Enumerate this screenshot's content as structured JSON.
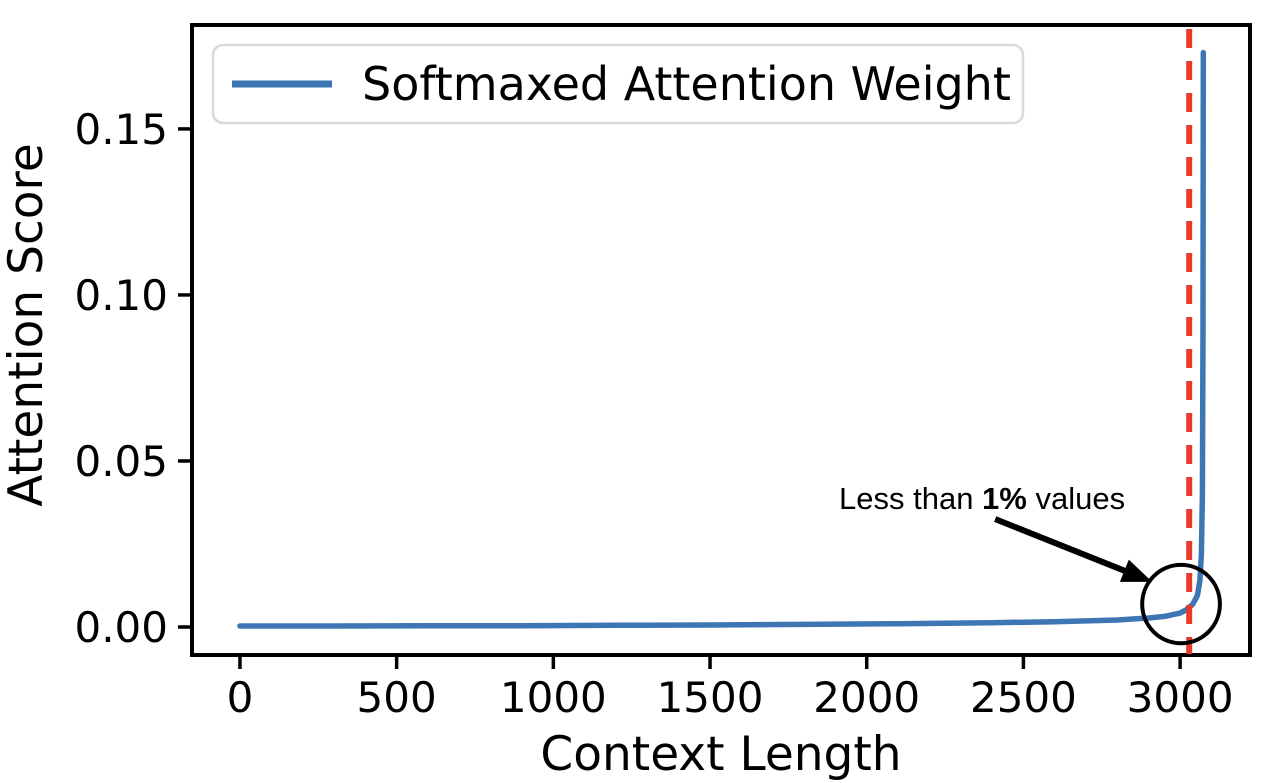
{
  "chart_data": {
    "type": "line",
    "title": "",
    "xlabel": "Context Length",
    "ylabel": "Attention Score",
    "xlim": [
      -153,
      3223
    ],
    "ylim": [
      -0.00843,
      0.1813
    ],
    "grid": false,
    "x_ticks": {
      "values": [
        0,
        500,
        1000,
        1500,
        2000,
        2500,
        3000
      ],
      "labels": [
        "0",
        "500",
        "1000",
        "1500",
        "2000",
        "2500",
        "3000"
      ]
    },
    "y_ticks": {
      "values": [
        0.0,
        0.05,
        0.1,
        0.15
      ],
      "labels": [
        "0.00",
        "0.05",
        "0.10",
        "0.15"
      ]
    },
    "legend": {
      "position": "upper left",
      "label": "Softmaxed Attention Weight",
      "line_color": "#3e76b4",
      "border_color": "#d9d9d9",
      "background": "#ffffff"
    },
    "series": [
      {
        "name": "Softmaxed Attention Weight",
        "color": "#3e76b4",
        "line_width": 5.5,
        "points": [
          [
            0,
            0.0003
          ],
          [
            300,
            0.0003
          ],
          [
            600,
            0.00035
          ],
          [
            900,
            0.0004
          ],
          [
            1200,
            0.0005
          ],
          [
            1500,
            0.0006
          ],
          [
            1800,
            0.0008
          ],
          [
            2100,
            0.001
          ],
          [
            2400,
            0.0013
          ],
          [
            2600,
            0.0016
          ],
          [
            2800,
            0.0021
          ],
          [
            2900,
            0.0027
          ],
          [
            2950,
            0.0032
          ],
          [
            3000,
            0.0042
          ],
          [
            3020,
            0.0052
          ],
          [
            3040,
            0.0068
          ],
          [
            3055,
            0.0095
          ],
          [
            3063,
            0.014
          ],
          [
            3068,
            0.022
          ],
          [
            3071,
            0.04
          ],
          [
            3073,
            0.09
          ],
          [
            3074,
            0.173
          ]
        ]
      }
    ],
    "reference_line": {
      "x": 3029,
      "color": "#e8392b",
      "style": "dashed",
      "width": 6
    },
    "annotation": {
      "parts": [
        {
          "text": "Less than ",
          "bold": false
        },
        {
          "text": "1%",
          "bold": true
        },
        {
          "text": " values",
          "bold": false
        }
      ],
      "color": "#000000",
      "text_anchor": [
        2368,
        0.0388
      ],
      "arrow": {
        "from": [
          2410,
          0.0325
        ],
        "to": [
          2911,
          0.0136
        ]
      },
      "ellipse": {
        "center": [
          3003,
          0.0069
        ],
        "rx": 124,
        "ry": 0.0118
      }
    },
    "colors": {
      "spine": "#000000",
      "tick": "#000000",
      "text": "#000000"
    }
  }
}
